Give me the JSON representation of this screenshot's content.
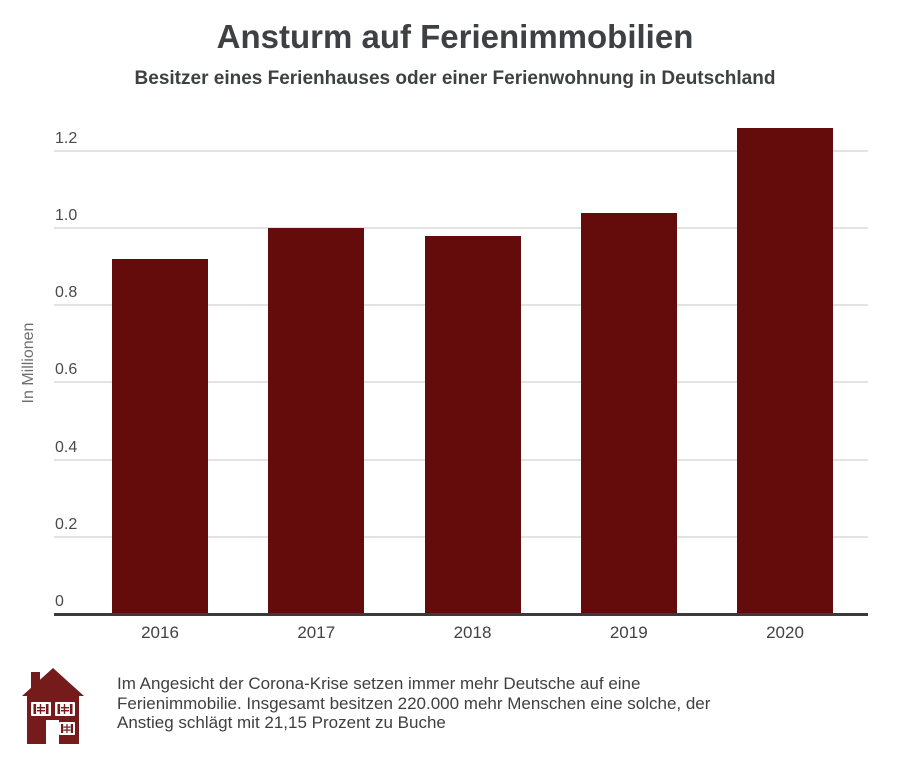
{
  "page": {
    "background": "#ffffff"
  },
  "chart_data": {
    "type": "bar",
    "title": "Ansturm auf Ferienimmobilien",
    "subtitle": "Besitzer eines Ferienhauses oder einer Ferienwohnung in Deutschland",
    "categories": [
      "2016",
      "2017",
      "2018",
      "2019",
      "2020"
    ],
    "values": [
      0.92,
      1.0,
      0.98,
      1.04,
      1.26
    ],
    "xlabel": "",
    "ylabel": "In Millionen",
    "yticks": [
      0,
      0.2,
      0.4,
      0.6,
      0.8,
      1.0,
      1.2
    ],
    "ytick_labels": [
      "0",
      "0.2",
      "0.4",
      "0.6",
      "0.8",
      "1.0",
      "1.2"
    ],
    "ylim": [
      0,
      1.3
    ],
    "grid": true,
    "legend": "none",
    "bar_color": "#640b0b",
    "gridline_color": "#e3e3e3",
    "axis_color": "#3a3a3a"
  },
  "footer": {
    "icon": "house-icon",
    "icon_color": "#751b1b",
    "caption_lines": [
      "Im Angesicht der Corona-Krise setzen immer mehr Deutsche auf eine",
      "Ferienimmobilie. Insgesamt besitzen 220.000 mehr Menschen eine solche, der",
      "Anstieg schlägt mit 21,15 Prozent zu Buche"
    ]
  },
  "colors": {
    "title_text": "#3e4144",
    "tick_text": "#4a4a4a",
    "caption_text": "#3f3f3f",
    "ylabel_text": "#6f6f6f"
  }
}
